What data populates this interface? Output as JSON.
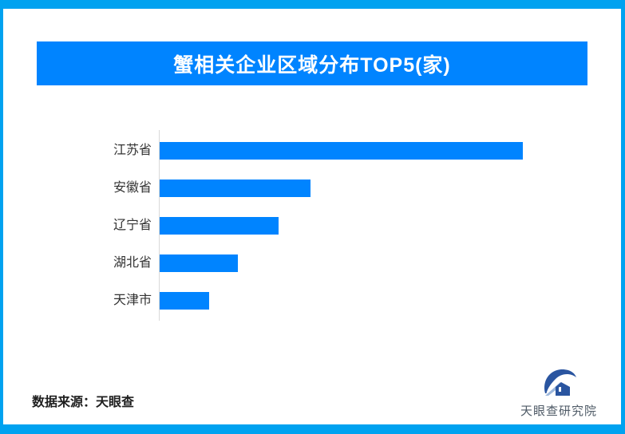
{
  "page": {
    "background": "#ffffff",
    "border_color": "#00a2f0"
  },
  "header": {
    "banner_color": "#0084ff",
    "title_text_color": "#ffffff"
  },
  "chart_data": {
    "type": "bar",
    "orientation": "horizontal",
    "title": "蟹相关企业区域分布TOP5(家)",
    "categories": [
      "江苏省",
      "安徽省",
      "辽宁省",
      "湖北省",
      "天津市"
    ],
    "values_relative_pct": [
      100,
      41.5,
      32.7,
      21.5,
      13.6
    ],
    "value_labels_shown": false,
    "value_axis_shown": false,
    "xlabel": "",
    "ylabel": "",
    "grid": false,
    "legend": false,
    "bar_color": "#0084ff",
    "axis_line_color": "#d9d9d9",
    "label_color": "#333333"
  },
  "footer": {
    "source": "数据来源：天眼查",
    "brand": "天眼查研究院",
    "brand_text_color": "#4e5a66",
    "logo_color": "#2a55a0",
    "logo_accent_color": "#9db8dc"
  }
}
